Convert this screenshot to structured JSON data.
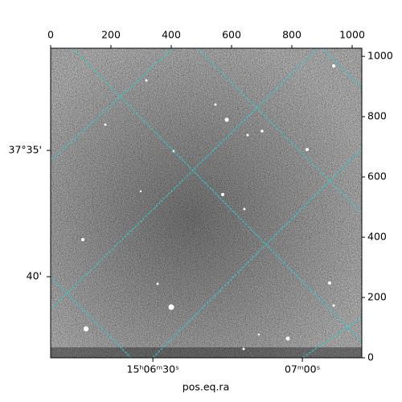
{
  "chart_data": {
    "type": "image",
    "xlabel": "pos.eq.ra",
    "xlim": [
      0,
      1032
    ],
    "xticks": [
      0,
      200,
      400,
      600,
      800,
      1000
    ],
    "ylim": [
      0,
      1027
    ],
    "yticks": [
      0,
      200,
      400,
      600,
      800,
      1000
    ],
    "ra_ticks": [
      {
        "value": 339,
        "label": "15ʰ06ᵐ30ˢ"
      },
      {
        "value": 835,
        "label": "07ᵐ00ˢ"
      }
    ],
    "dec_ticks": [
      {
        "value": 688,
        "label": "37°35'"
      },
      {
        "value": 269,
        "label": "40'"
      }
    ]
  }
}
